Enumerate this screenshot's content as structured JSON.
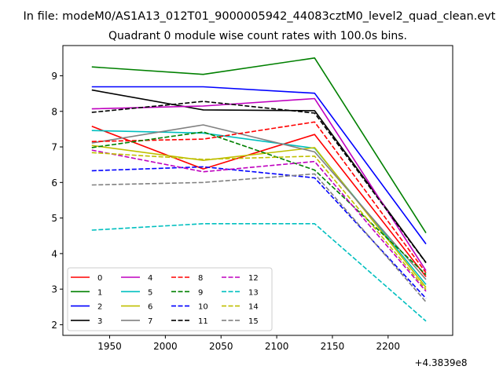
{
  "chart_data": {
    "type": "line",
    "suptitle": "In file: modeM0/AS1A13_012T01_9000005942_44083cztM0_level2_quad_clean.evt",
    "title": "Quadrant 0 module wise count rates with 100.0s bins.",
    "xlabel": "",
    "ylabel": "",
    "x_offset_label": "+4.3839e8",
    "x": [
      1934,
      2034,
      2134,
      2234
    ],
    "xlim": [
      1908,
      2258
    ],
    "ylim": [
      1.7,
      9.85
    ],
    "xticks": [
      1950,
      2000,
      2050,
      2100,
      2150,
      2200
    ],
    "yticks": [
      2,
      3,
      4,
      5,
      6,
      7,
      8,
      9
    ],
    "grid": false,
    "legend_position": "lower-left",
    "series": [
      {
        "name": "0",
        "color": "#ff0000",
        "dash": "solid",
        "values": [
          7.58,
          6.38,
          7.35,
          3.35
        ]
      },
      {
        "name": "1",
        "color": "#008000",
        "dash": "solid",
        "values": [
          9.25,
          9.04,
          9.5,
          4.58
        ]
      },
      {
        "name": "2",
        "color": "#0000ff",
        "dash": "solid",
        "values": [
          8.69,
          8.69,
          8.51,
          4.27
        ]
      },
      {
        "name": "3",
        "color": "#000000",
        "dash": "solid",
        "values": [
          8.6,
          8.04,
          8.02,
          3.75
        ]
      },
      {
        "name": "4",
        "color": "#bf00bf",
        "dash": "solid",
        "values": [
          8.07,
          8.15,
          8.36,
          3.52
        ]
      },
      {
        "name": "5",
        "color": "#00bfbf",
        "dash": "solid",
        "values": [
          7.46,
          7.39,
          6.96,
          3.13
        ]
      },
      {
        "name": "6",
        "color": "#bfbf00",
        "dash": "solid",
        "values": [
          7.04,
          6.62,
          6.98,
          3.05
        ]
      },
      {
        "name": "7",
        "color": "#808080",
        "dash": "solid",
        "values": [
          7.11,
          7.62,
          6.86,
          3.27
        ]
      },
      {
        "name": "8",
        "color": "#ff0000",
        "dash": "dashed",
        "values": [
          7.15,
          7.22,
          7.7,
          3.46
        ]
      },
      {
        "name": "9",
        "color": "#008000",
        "dash": "dashed",
        "values": [
          6.98,
          7.42,
          6.35,
          3.41
        ]
      },
      {
        "name": "10",
        "color": "#0000ff",
        "dash": "dashed",
        "values": [
          6.33,
          6.44,
          6.13,
          2.74
        ]
      },
      {
        "name": "11",
        "color": "#000000",
        "dash": "dashed",
        "values": [
          7.97,
          8.28,
          7.95,
          3.74
        ]
      },
      {
        "name": "12",
        "color": "#bf00bf",
        "dash": "dashed",
        "values": [
          6.91,
          6.3,
          6.59,
          2.94
        ]
      },
      {
        "name": "13",
        "color": "#00bfbf",
        "dash": "dashed",
        "values": [
          4.66,
          4.84,
          4.84,
          2.1
        ]
      },
      {
        "name": "14",
        "color": "#bfbf00",
        "dash": "dashed",
        "values": [
          6.84,
          6.65,
          6.74,
          2.99
        ]
      },
      {
        "name": "15",
        "color": "#808080",
        "dash": "dashed",
        "values": [
          5.93,
          6.0,
          6.24,
          2.64
        ]
      }
    ]
  }
}
